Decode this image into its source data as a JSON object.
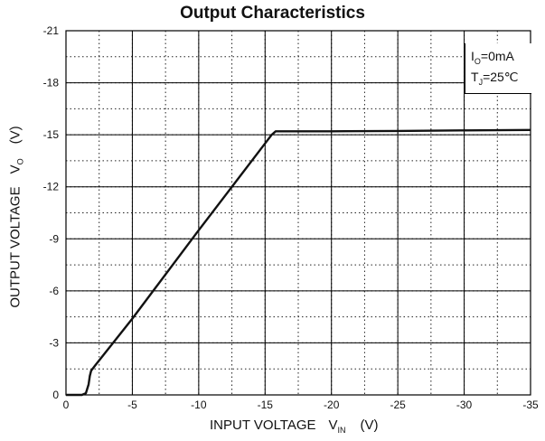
{
  "chart_data": {
    "type": "line",
    "title": "Output  Characteristics",
    "xlabel": {
      "main": "INPUT VOLTAGE",
      "symbol": "V",
      "subscript": "IN",
      "unit": "(V)"
    },
    "ylabel": {
      "main": "OUTPUT VOLTAGE",
      "symbol": "V",
      "subscript": "O",
      "unit": "(V)"
    },
    "xlim": [
      0,
      -35
    ],
    "ylim": [
      0,
      -21
    ],
    "x_ticks": [
      0,
      -5,
      -10,
      -15,
      -20,
      -25,
      -30,
      -35
    ],
    "x_tick_labels": [
      "0",
      "-5",
      "-10",
      "-15",
      "-20",
      "-25",
      "-30",
      "-35"
    ],
    "y_ticks": [
      0,
      -3,
      -6,
      -9,
      -12,
      -15,
      -18,
      -21
    ],
    "y_tick_labels": [
      "0",
      "-3",
      "-6",
      "-9",
      "-12",
      "-15",
      "-18",
      "-21"
    ],
    "grid": {
      "major": true,
      "minor_dotted": true,
      "minor_x_step": -2.5,
      "minor_y_step": -1.5
    },
    "legend": {
      "position": "top-right",
      "line1": {
        "symbol": "I",
        "subscript": "O",
        "value": "=0mA"
      },
      "line2": {
        "symbol": "T",
        "subscript": "J",
        "value": "=25℃"
      }
    },
    "series": [
      {
        "x": [
          0,
          -1.2,
          -1.5,
          -1.7,
          -1.8,
          -1.9,
          -2.2,
          -5,
          -10,
          -15,
          -15.5,
          -15.8,
          -20,
          -25,
          -30,
          -35
        ],
        "y": [
          0,
          0,
          -0.1,
          -0.6,
          -1.1,
          -1.4,
          -1.7,
          -4.4,
          -9.5,
          -14.5,
          -15.0,
          -15.2,
          -15.2,
          -15.22,
          -15.25,
          -15.28
        ]
      }
    ]
  }
}
